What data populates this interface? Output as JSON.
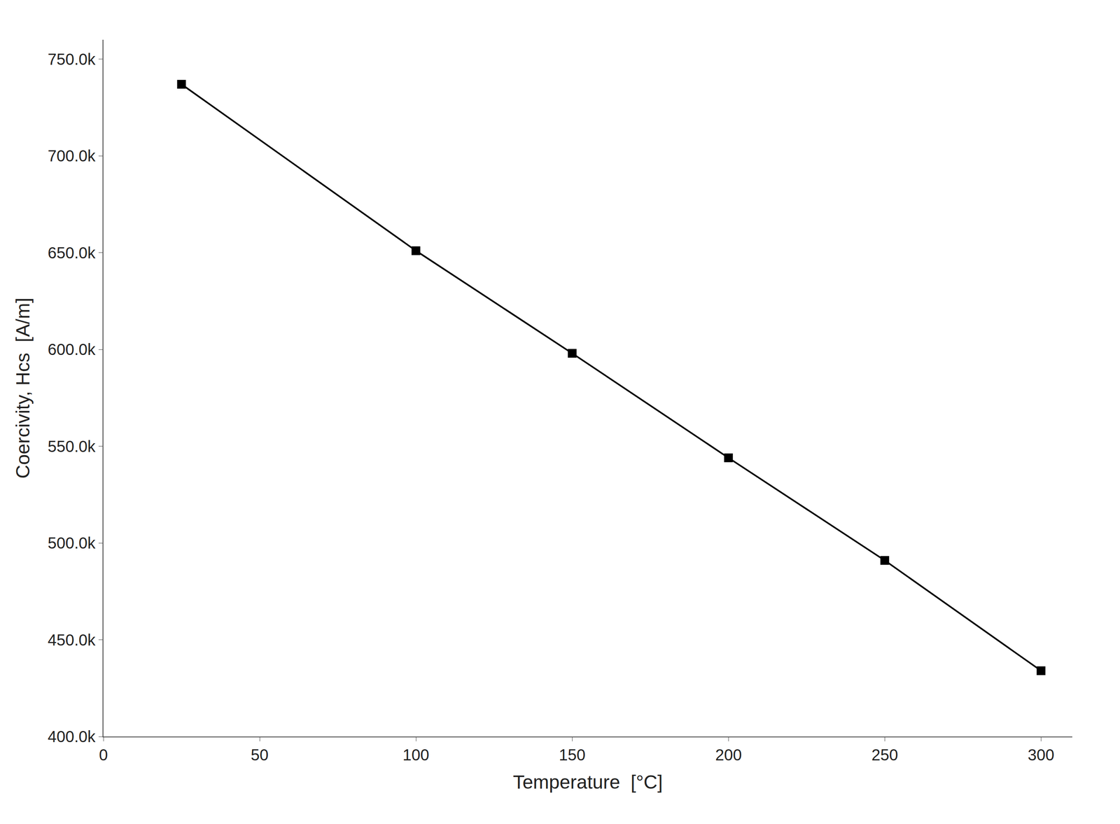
{
  "chart_data": {
    "type": "line",
    "x": [
      25,
      100,
      150,
      200,
      250,
      300
    ],
    "values": [
      737000,
      651000,
      598000,
      544000,
      491000,
      434000
    ],
    "xlabel": "Temperature  [°C]",
    "ylabel": "Coercivity, Hcs  [A/m]",
    "xlim": [
      0,
      310
    ],
    "ylim": [
      400000,
      760000
    ],
    "xticks": [
      0,
      50,
      100,
      150,
      200,
      250,
      300
    ],
    "yticks": [
      {
        "value": 400000,
        "label": "400.0k"
      },
      {
        "value": 450000,
        "label": "450.0k"
      },
      {
        "value": 500000,
        "label": "500.0k"
      },
      {
        "value": 550000,
        "label": "550.0k"
      },
      {
        "value": 600000,
        "label": "600.0k"
      },
      {
        "value": 650000,
        "label": "650.0k"
      },
      {
        "value": 700000,
        "label": "700.0k"
      },
      {
        "value": 750000,
        "label": "750.0k"
      }
    ],
    "color": "#000000",
    "marker": "square",
    "line_style": "solid",
    "grid": false
  }
}
